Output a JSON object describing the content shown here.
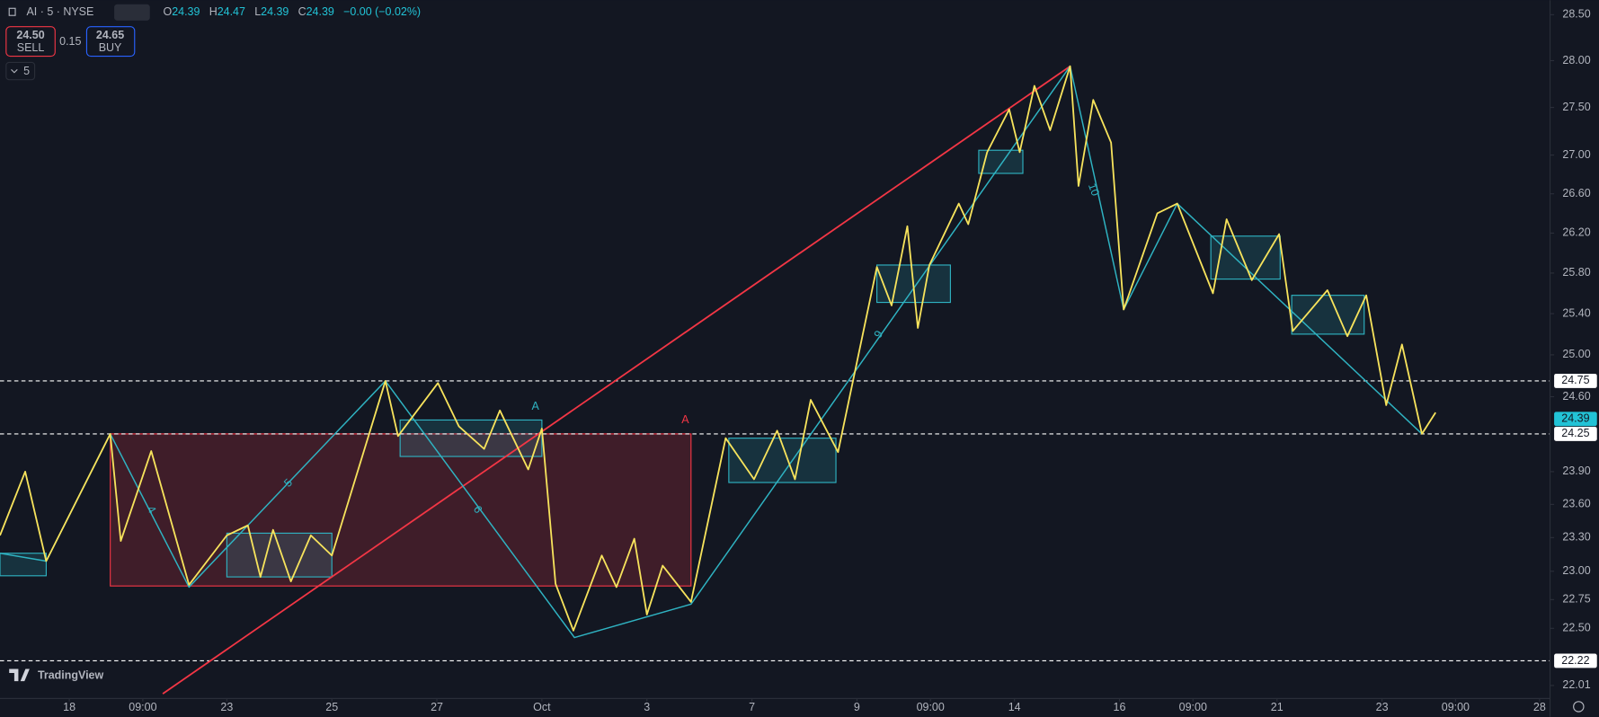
{
  "toolbar": {
    "symbol": "AI · 5 · NYSE",
    "ohlc": [
      [
        "O",
        "24.39"
      ],
      [
        "H",
        "24.47"
      ],
      [
        "L",
        "24.39"
      ],
      [
        "C",
        "24.39"
      ]
    ],
    "change": "−0.00 (−0.02%)",
    "sell": {
      "price": "24.50",
      "label": "SELL"
    },
    "spread": "0.15",
    "buy": {
      "price": "24.65",
      "label": "BUY"
    },
    "interval": "5"
  },
  "logo": "TradingView",
  "chart_data": {
    "type": "line",
    "log": true,
    "xlim": [
      -0.66,
      14.1
    ],
    "ylim": [
      21.9,
      28.66
    ],
    "xticks": [
      {
        "value": 0,
        "label": "18"
      },
      {
        "value": 0.7,
        "label": "09:00"
      },
      {
        "value": 1.5,
        "label": "23"
      },
      {
        "value": 2.5,
        "label": "25"
      },
      {
        "value": 3.5,
        "label": "27"
      },
      {
        "value": 4.5,
        "label": "Oct"
      },
      {
        "value": 5.5,
        "label": "3"
      },
      {
        "value": 6.5,
        "label": "7"
      },
      {
        "value": 7.5,
        "label": "9"
      },
      {
        "value": 8.2,
        "label": "09:00"
      },
      {
        "value": 9,
        "label": "14"
      },
      {
        "value": 10,
        "label": "16"
      },
      {
        "value": 10.7,
        "label": "09:00"
      },
      {
        "value": 11.5,
        "label": "21"
      },
      {
        "value": 12.5,
        "label": "23"
      },
      {
        "value": 13.2,
        "label": "09:00"
      },
      {
        "value": 14,
        "label": "28"
      }
    ],
    "yticks": [
      {
        "value": 28.5,
        "label": "28.50"
      },
      {
        "value": 28,
        "label": "28.00"
      },
      {
        "value": 27.5,
        "label": "27.50"
      },
      {
        "value": 27,
        "label": "27.00"
      },
      {
        "value": 26.6,
        "label": "26.60"
      },
      {
        "value": 26.2,
        "label": "26.20"
      },
      {
        "value": 25.8,
        "label": "25.80"
      },
      {
        "value": 25.4,
        "label": "25.40"
      },
      {
        "value": 25,
        "label": "25.00"
      },
      {
        "value": 24.6,
        "label": "24.60"
      },
      {
        "value": 23.9,
        "label": "23.90"
      },
      {
        "value": 23.6,
        "label": "23.60"
      },
      {
        "value": 23.3,
        "label": "23.30"
      },
      {
        "value": 23,
        "label": "23.00"
      },
      22.75,
      {
        "value": 22.5,
        "label": "22.50"
      },
      22.01
    ],
    "zigzag": {
      "color": "#f7e35c",
      "x": [
        -0.66,
        -0.42,
        -0.22,
        0.39,
        0.49,
        0.78,
        1.14,
        1.5,
        1.7,
        1.82,
        1.94,
        2.11,
        2.3,
        2.5,
        3.01,
        3.13,
        3.51,
        3.71,
        3.95,
        4.1,
        4.37,
        4.5,
        4.63,
        4.8,
        5.07,
        5.21,
        5.38,
        5.5,
        5.65,
        5.92,
        6.25,
        6.52,
        6.74,
        6.91,
        7.06,
        7.32,
        7.69,
        7.83,
        7.98,
        8.08,
        8.19,
        8.47,
        8.56,
        8.74,
        8.95,
        9.05,
        9.19,
        9.34,
        9.53,
        9.61,
        9.75,
        9.92,
        10.04,
        10.36,
        10.55,
        10.89,
        11.02,
        11.26,
        11.52,
        11.65,
        11.98,
        12.17,
        12.35,
        12.54,
        12.69,
        12.88,
        13.01
      ],
      "values": [
        23.32,
        23.9,
        23.09,
        24.25,
        23.27,
        24.09,
        22.88,
        23.32,
        23.41,
        22.95,
        23.37,
        22.91,
        23.32,
        23.14,
        24.75,
        24.23,
        24.73,
        24.32,
        24.11,
        24.47,
        23.92,
        24.3,
        22.89,
        22.48,
        23.14,
        22.86,
        23.29,
        22.62,
        23.05,
        22.73,
        24.21,
        23.83,
        24.28,
        23.83,
        24.57,
        24.08,
        25.86,
        25.48,
        26.27,
        25.26,
        25.88,
        26.5,
        26.29,
        27.03,
        27.48,
        27.03,
        27.73,
        27.26,
        27.94,
        26.68,
        27.58,
        27.13,
        25.44,
        26.4,
        26.5,
        25.6,
        26.34,
        25.73,
        26.19,
        25.23,
        25.63,
        25.18,
        25.58,
        24.52,
        25.1,
        24.25,
        24.45
      ]
    },
    "swing": {
      "color": "#2fb3c2",
      "x": [
        -0.66,
        -0.22,
        0.39,
        1.14,
        3.01,
        4.81,
        5.92,
        9.53,
        10.04,
        10.55,
        12.88
      ],
      "values": [
        23.16,
        23.09,
        24.25,
        22.86,
        24.75,
        22.42,
        22.71,
        27.94,
        25.44,
        26.5,
        24.25
      ]
    },
    "trendline": {
      "color": "#f23645",
      "x": [
        0.89,
        9.53
      ],
      "values": [
        21.94,
        27.94
      ]
    },
    "zone": {
      "color": "#f23645",
      "x": [
        0.39,
        5.92
      ],
      "values": [
        24.25,
        22.87
      ]
    },
    "box_color": "#2fb3c2",
    "boxes": [
      {
        "x": [
          -0.66,
          -0.22
        ],
        "values": [
          23.16,
          22.96
        ]
      },
      {
        "x": [
          1.5,
          2.5
        ],
        "values": [
          23.34,
          22.95
        ]
      },
      {
        "x": [
          3.15,
          4.5
        ],
        "values": [
          24.38,
          24.04
        ]
      },
      {
        "x": [
          6.28,
          7.3
        ],
        "values": [
          24.21,
          23.8
        ]
      },
      {
        "x": [
          7.69,
          8.39
        ],
        "values": [
          25.88,
          25.51
        ]
      },
      {
        "x": [
          8.66,
          9.08
        ],
        "values": [
          27.05,
          26.81
        ]
      },
      {
        "x": [
          10.87,
          11.53
        ],
        "values": [
          26.17,
          25.74
        ]
      },
      {
        "x": [
          11.64,
          12.33
        ],
        "values": [
          25.58,
          25.2
        ]
      }
    ],
    "level_color": "#ffffff",
    "levels": [
      24.75,
      24.25,
      22.22
    ],
    "price": {
      "value": 24.39,
      "color": "#22c3d6"
    },
    "wave_labels": [
      {
        "text": "4",
        "color": "#2fb3c2"
      },
      {
        "text": "5",
        "color": "#2fb3c2"
      },
      {
        "text": "6",
        "color": "#2fb3c2"
      },
      {
        "text": "A",
        "color": "#2fb3c2"
      },
      {
        "text": "A",
        "color": "#f23645"
      },
      {
        "text": "9",
        "color": "#2fb3c2"
      },
      {
        "text": "10",
        "color": "#2fb3c2"
      }
    ]
  }
}
